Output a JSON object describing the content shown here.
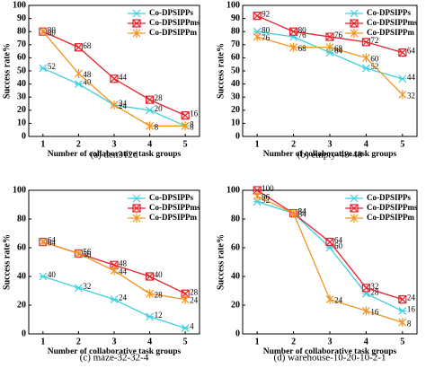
{
  "chart_data": [
    {
      "type": "line",
      "caption": "(a) den312d",
      "xlabel": "Number of collaborative task groups",
      "ylabel": "Success rate%",
      "x": [
        1,
        2,
        3,
        4,
        5
      ],
      "xlim": [
        0.6,
        5.4
      ],
      "xticks": [
        1,
        2,
        3,
        4,
        5
      ],
      "ylim": [
        0,
        100
      ],
      "yticks": [
        0,
        10,
        20,
        30,
        40,
        50,
        60,
        70,
        80,
        90,
        100
      ],
      "legend": "upper right",
      "series": [
        {
          "name": "Co-DPSIPPs",
          "color": "#3fd0e0",
          "values": [
            52,
            40,
            24,
            20,
            8
          ]
        },
        {
          "name": "Co-DPSIPPms",
          "color": "#e8202a",
          "values": [
            80,
            68,
            44,
            28,
            16
          ]
        },
        {
          "name": "Co-DPSIPPm",
          "color": "#f5921e",
          "values": [
            80,
            48,
            24,
            8,
            8
          ]
        }
      ]
    },
    {
      "type": "line",
      "caption": "(b) empty-48-48",
      "xlabel": "Number of collaborative task groups",
      "ylabel": "Success rate%",
      "x": [
        1,
        2,
        3,
        4,
        5
      ],
      "xlim": [
        0.6,
        5.4
      ],
      "xticks": [
        1,
        2,
        3,
        4,
        5
      ],
      "ylim": [
        0,
        100
      ],
      "yticks": [
        0,
        10,
        20,
        30,
        40,
        50,
        60,
        70,
        80,
        90,
        100
      ],
      "legend": "upper right",
      "series": [
        {
          "name": "Co-DPSIPPs",
          "color": "#3fd0e0",
          "values": [
            80,
            76,
            64,
            52,
            44
          ]
        },
        {
          "name": "Co-DPSIPPms",
          "color": "#e8202a",
          "values": [
            92,
            80,
            76,
            72,
            64
          ]
        },
        {
          "name": "Co-DPSIPPm",
          "color": "#f5921e",
          "values": [
            76,
            68,
            68,
            60,
            32
          ]
        }
      ]
    },
    {
      "type": "line",
      "caption": "(c) maze-32-32-4",
      "xlabel": "Number of collaborative task groups",
      "ylabel": "Success rate%",
      "x": [
        1,
        2,
        3,
        4,
        5
      ],
      "xlim": [
        0.6,
        5.4
      ],
      "xticks": [
        1,
        2,
        3,
        4,
        5
      ],
      "ylim": [
        0,
        100
      ],
      "yticks": [
        0,
        20,
        40,
        60,
        80,
        100
      ],
      "legend": "upper right",
      "series": [
        {
          "name": "Co-DPSIPPs",
          "color": "#3fd0e0",
          "values": [
            40,
            32,
            24,
            12,
            4
          ]
        },
        {
          "name": "Co-DPSIPPms",
          "color": "#e8202a",
          "values": [
            64,
            56,
            48,
            40,
            28
          ]
        },
        {
          "name": "Co-DPSIPPm",
          "color": "#f5921e",
          "values": [
            64,
            56,
            44,
            28,
            24
          ]
        }
      ]
    },
    {
      "type": "line",
      "caption": "(d) warehouse-10-20-10-2-1",
      "xlabel": "Number of collaborative task groups",
      "ylabel": "Success rate%",
      "x": [
        1,
        2,
        3,
        4,
        5
      ],
      "xlim": [
        0.6,
        5.4
      ],
      "xticks": [
        1,
        2,
        3,
        4,
        5
      ],
      "ylim": [
        0,
        100
      ],
      "yticks": [
        0,
        20,
        40,
        60,
        80,
        100
      ],
      "legend": "upper right",
      "series": [
        {
          "name": "Co-DPSIPPs",
          "color": "#3fd0e0",
          "values": [
            92,
            84,
            60,
            28,
            16
          ]
        },
        {
          "name": "Co-DPSIPPms",
          "color": "#e8202a",
          "values": [
            100,
            84,
            64,
            32,
            24
          ]
        },
        {
          "name": "Co-DPSIPPm",
          "color": "#f5921e",
          "values": [
            96,
            84,
            24,
            16,
            8
          ]
        }
      ]
    }
  ]
}
